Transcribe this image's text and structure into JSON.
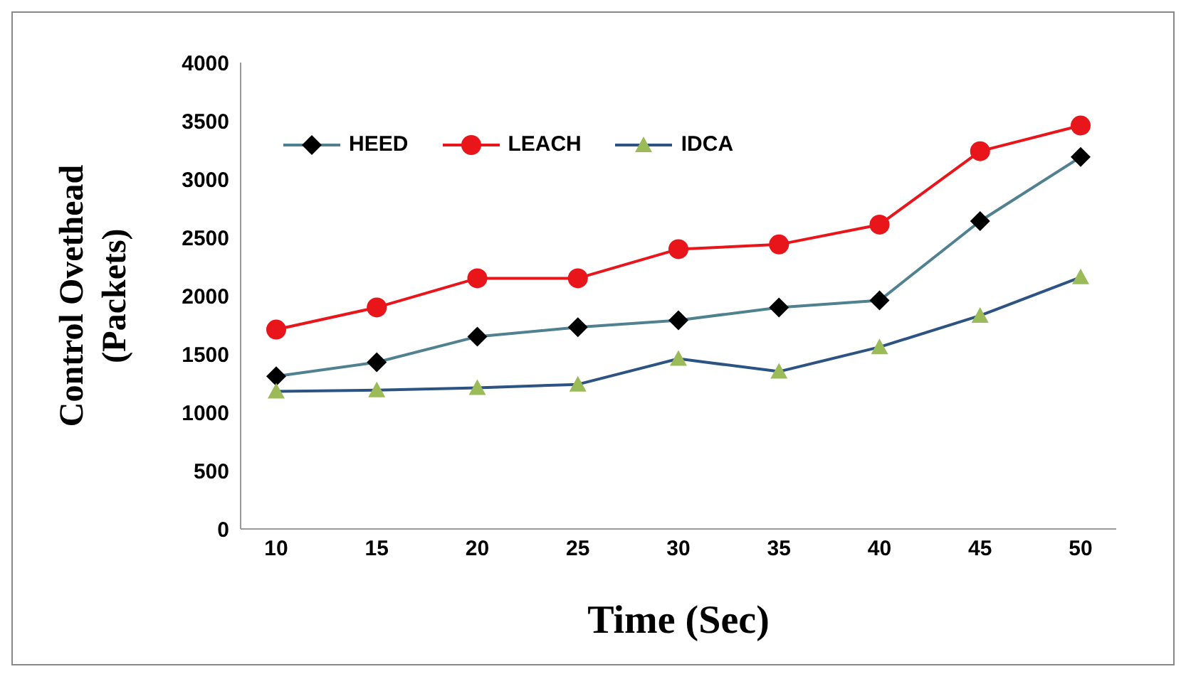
{
  "chart_data": {
    "type": "line",
    "xlabel": "Time (Sec)",
    "ylabel": "Control Ovethead (Packets)",
    "categories": [
      "10",
      "15",
      "20",
      "25",
      "30",
      "35",
      "40",
      "45",
      "50"
    ],
    "ylim": [
      0,
      4000
    ],
    "yticks": [
      0,
      500,
      1000,
      1500,
      2000,
      2500,
      3000,
      3500,
      4000
    ],
    "grid": false,
    "legend": "top left",
    "series": [
      {
        "name": "HEED",
        "color": "#4f8190",
        "marker": "diamond",
        "values": [
          1310,
          1430,
          1650,
          1730,
          1790,
          1900,
          1960,
          2640,
          3190
        ]
      },
      {
        "name": "LEACH",
        "color": "#e8151b",
        "marker": "circle",
        "values": [
          1710,
          1900,
          2150,
          2150,
          2400,
          2440,
          2610,
          3240,
          3460
        ]
      },
      {
        "name": "IDCA",
        "color": "#2c5382",
        "marker": "triangle",
        "values": [
          1180,
          1190,
          1210,
          1240,
          1460,
          1350,
          1560,
          1830,
          2160
        ]
      }
    ]
  }
}
